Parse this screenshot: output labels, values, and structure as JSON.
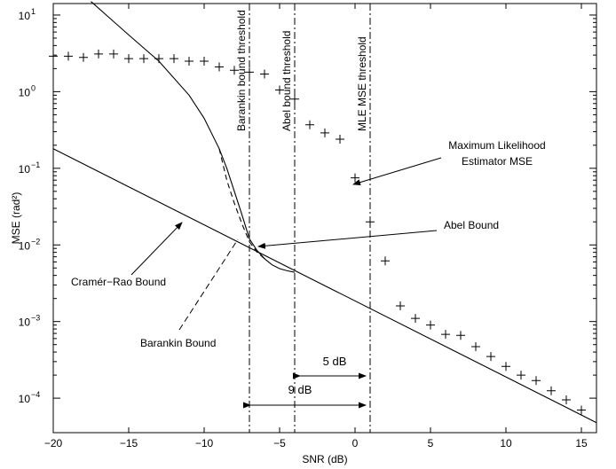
{
  "chart_data": {
    "type": "line",
    "title": "",
    "xlabel": "SNR (dB)",
    "ylabel": "MSE (rad²)",
    "xlim": [
      -20,
      16
    ],
    "ylim_log10": [
      -4.45,
      1.15
    ],
    "yscale": "log",
    "grid": false,
    "xticks": [
      -20,
      -15,
      -10,
      -5,
      0,
      5,
      10,
      15
    ],
    "xtick_labels": [
      "−20",
      "−15",
      "−10",
      "−5",
      "0",
      "5",
      "10",
      "15"
    ],
    "yticks_exp": [
      -4,
      -3,
      -2,
      -1,
      0,
      1
    ],
    "series": [
      {
        "key": "mle",
        "style": "plus-markers",
        "x": [
          -20,
          -19,
          -18,
          -17,
          -16,
          -15,
          -14,
          -13,
          -12,
          -11,
          -10,
          -9,
          -8,
          -7,
          -6,
          -5,
          -4,
          -3,
          -2,
          -1,
          0,
          1,
          2,
          3,
          4,
          5,
          6,
          7,
          8,
          9,
          10,
          11,
          12,
          13,
          14,
          15
        ],
        "y": [
          2.9,
          2.9,
          2.8,
          3.1,
          3.1,
          2.7,
          2.7,
          2.7,
          2.7,
          2.5,
          2.5,
          2.1,
          1.9,
          1.8,
          1.7,
          1.05,
          0.8,
          0.37,
          0.29,
          0.24,
          0.075,
          0.02,
          0.0062,
          0.0016,
          0.0011,
          0.0009,
          0.00068,
          0.00066,
          0.00047,
          0.00035,
          0.00026,
          0.0002,
          0.00017,
          0.000125,
          9.5e-05,
          7e-05
        ]
      },
      {
        "key": "crb",
        "style": "solid",
        "x": [
          -20,
          16
        ],
        "y": [
          0.18,
          4.8e-05
        ]
      },
      {
        "key": "abel",
        "style": "solid",
        "x": [
          -17.5,
          -15,
          -13,
          -11,
          -10,
          -9,
          -8.5,
          -8,
          -7.5,
          -7,
          -6.5,
          -6,
          -5.5,
          -5,
          -4.5,
          -4
        ],
        "y": [
          15,
          5.5,
          2.5,
          0.9,
          0.45,
          0.18,
          0.1,
          0.05,
          0.025,
          0.012,
          0.0085,
          0.0066,
          0.0055,
          0.0049,
          0.0046,
          0.0044
        ]
      },
      {
        "key": "barankin",
        "style": "dashed",
        "x": [
          -9,
          -8.5,
          -8,
          -7.5,
          -7,
          -6.5,
          -6
        ],
        "y": [
          0.18,
          0.07,
          0.035,
          0.019,
          0.011,
          0.0081,
          0.0066
        ]
      }
    ],
    "thresholds": [
      {
        "x": -7,
        "label": "Barankin bound threshold"
      },
      {
        "x": -4,
        "label": "Abel bound threshold"
      },
      {
        "x": 1,
        "label": "MLE MSE threshold"
      }
    ],
    "annotations": {
      "mle_line1": "Maximum Likelihood",
      "mle_line2": "Estimator MSE",
      "abel": "Abel Bound",
      "crb": "Cramér−Rao Bound",
      "barankin": "Barankin Bound",
      "gap_5db": "5 dB",
      "gap_9db": "9 dB"
    }
  }
}
